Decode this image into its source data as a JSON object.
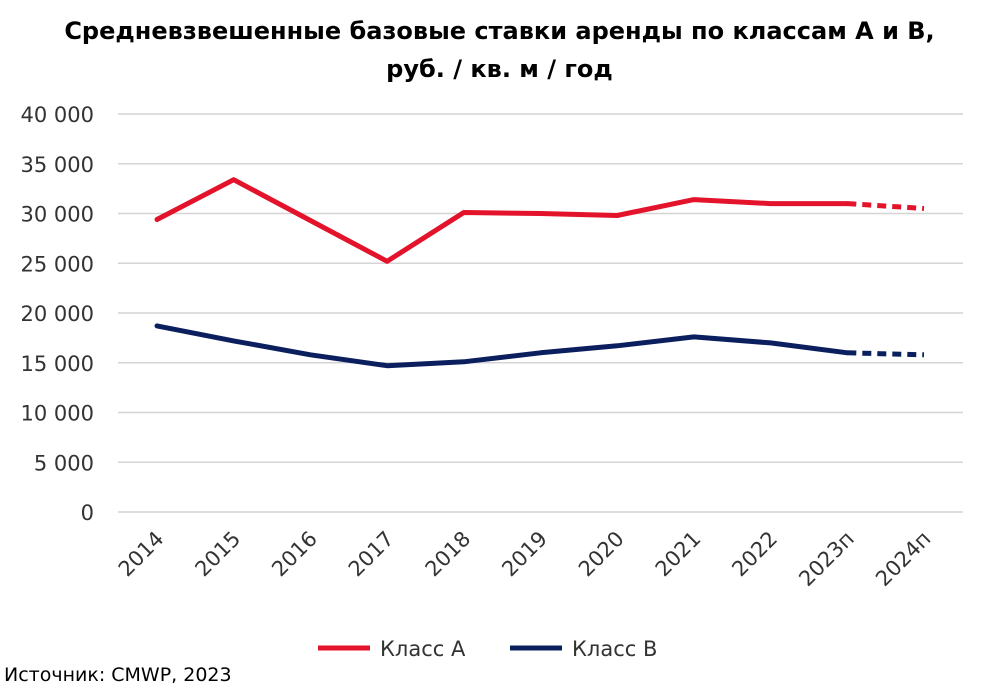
{
  "chart_data": {
    "type": "line",
    "title_line1": "Средневзвешенные базовые ставки аренды по классам А и В,",
    "title_line2": "руб. / кв. м / год",
    "categories": [
      "2014",
      "2015",
      "2016",
      "2017",
      "2018",
      "2019",
      "2020",
      "2021",
      "2022",
      "2023п",
      "2024п"
    ],
    "series": [
      {
        "name": "Класс А",
        "color": "#e3132b",
        "values": [
          29400,
          33400,
          29300,
          25200,
          30100,
          30000,
          29800,
          31400,
          31000,
          31000,
          30500
        ],
        "forecast_from_index": 9
      },
      {
        "name": "Класс В",
        "color": "#0b1f5e",
        "values": [
          18700,
          17200,
          15800,
          14700,
          15100,
          16000,
          16700,
          17600,
          17000,
          16000,
          15800
        ],
        "forecast_from_index": 9
      }
    ],
    "yticks": [
      "0",
      "5 000",
      "10 000",
      "15 000",
      "20 000",
      "25 000",
      "30 000",
      "35 000",
      "40 000"
    ],
    "ylim": [
      0,
      40000
    ],
    "grid": true,
    "legend_position": "bottom",
    "source": "Источник: CMWP, 2023"
  }
}
